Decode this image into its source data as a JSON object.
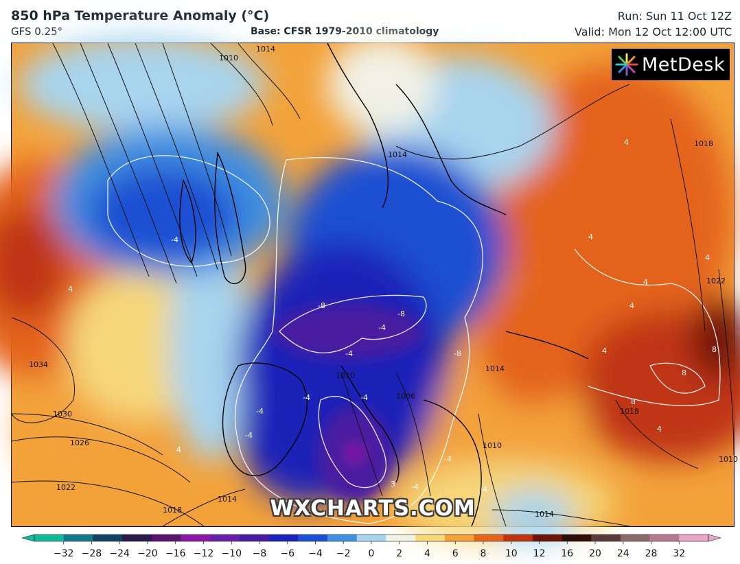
{
  "header": {
    "title": "850 hPa Temperature Anomaly (°C)",
    "model": "GFS 0.25°",
    "base": "Base: CFSR 1979-2010 climatology",
    "run": "Run: Sun 11 Oct 12Z",
    "valid": "Valid: Mon 12 Oct 12:00 UTC"
  },
  "branding": {
    "logo_text": "MetDesk",
    "watermark": "WXCHARTS.COM"
  },
  "colorbar": {
    "ticks": [
      "−32",
      "−28",
      "−24",
      "−20",
      "−16",
      "−12",
      "−10",
      "−8",
      "−6",
      "−4",
      "−2",
      "0",
      "2",
      "4",
      "6",
      "8",
      "10",
      "12",
      "16",
      "20",
      "24",
      "28",
      "32"
    ],
    "colors": [
      "#14b89a",
      "#137a8c",
      "#14415f",
      "#2a1a4a",
      "#5a1470",
      "#8e18a6",
      "#6a1fa8",
      "#4a1aa0",
      "#1c22b8",
      "#1c4fd2",
      "#3f8ee0",
      "#a8d4ee",
      "#f1f1e6",
      "#f6d77a",
      "#f3a23a",
      "#e4641e",
      "#bf3512",
      "#6e1409",
      "#2e0b07",
      "#5a3a3a",
      "#8b6a6a",
      "#b67a90",
      "#e8a6c8"
    ]
  },
  "map": {
    "isobar_labels": [
      "1010",
      "1014",
      "1014",
      "1018",
      "1022",
      "1026",
      "1030",
      "1034",
      "1014",
      "1018",
      "1022",
      "1010",
      "1014",
      "1010",
      "1014",
      "1018",
      "1010",
      "1006"
    ],
    "anomaly_labels": [
      "-4",
      "-4",
      "-8",
      "-8",
      "-4",
      "-4",
      "-8",
      "-4",
      "-4",
      "-4",
      "-4",
      "-4",
      "4",
      "4",
      "4",
      "4",
      "4",
      "4",
      "4",
      "8",
      "8",
      "8",
      "4",
      "4",
      "3",
      "4"
    ]
  }
}
